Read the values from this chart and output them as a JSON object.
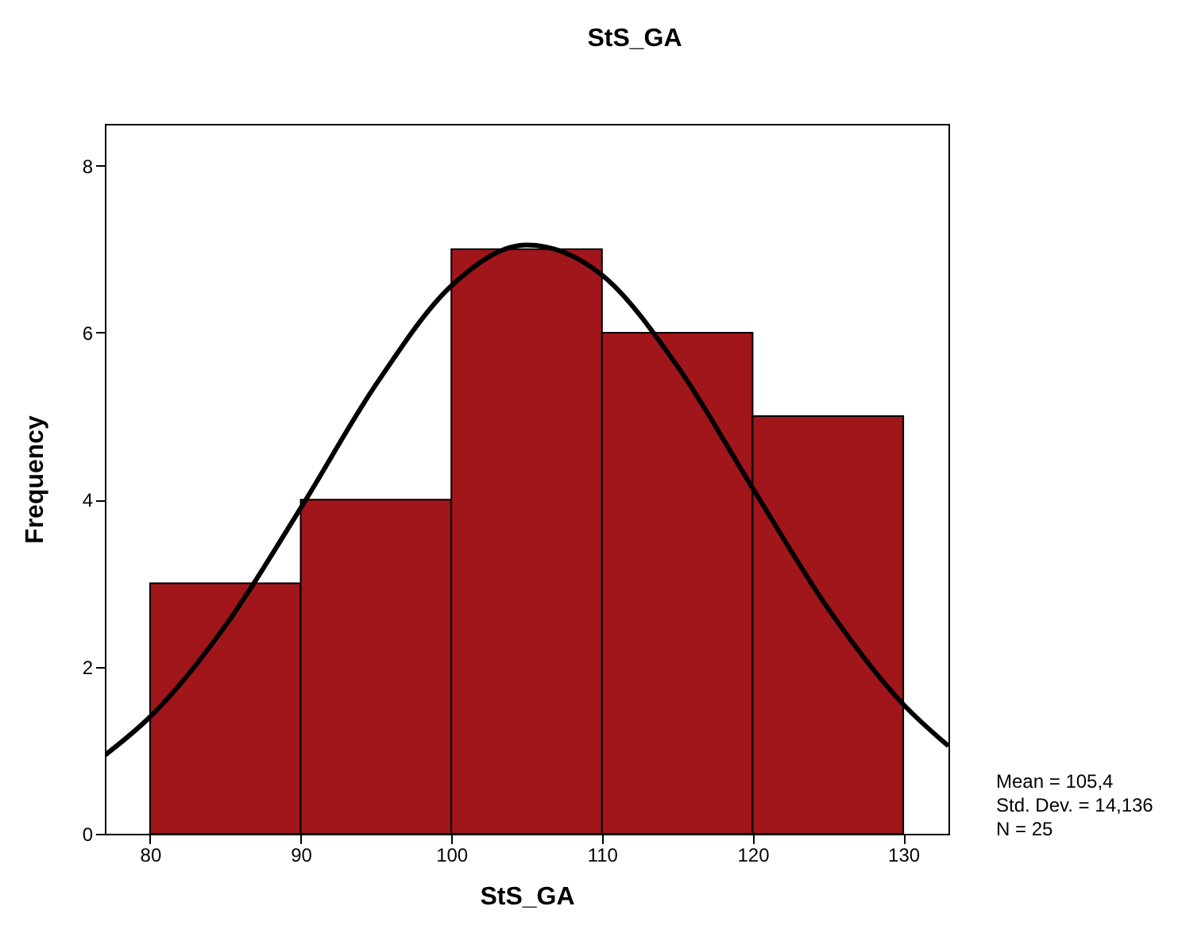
{
  "chart_data": {
    "type": "histogram",
    "title": "StS_GA",
    "xlabel": "StS_GA",
    "ylabel": "Frequency",
    "bins": [
      80,
      90,
      100,
      110,
      120,
      130
    ],
    "values": [
      3,
      4,
      7,
      6,
      5
    ],
    "color": "#a0161b",
    "series": [
      {
        "type": "line",
        "color": "#000000",
        "x": [
          77,
          80,
          85,
          90,
          95,
          100,
          105,
          110,
          115,
          120,
          125,
          130,
          133
        ],
        "values": [
          0.94,
          1.4,
          2.49,
          3.9,
          5.38,
          6.56,
          7.05,
          6.69,
          5.6,
          4.14,
          2.7,
          1.55,
          1.05
        ]
      }
    ],
    "xlim": [
      77,
      133
    ],
    "xticks": [
      80,
      90,
      100,
      110,
      120,
      130
    ],
    "ylim": [
      0,
      8.5
    ],
    "yticks": [
      0,
      2,
      4,
      6,
      8
    ],
    "grid": false,
    "annotations": [
      "Mean = 105,4",
      "Std. Dev. = 14,136",
      "N = 25"
    ]
  }
}
